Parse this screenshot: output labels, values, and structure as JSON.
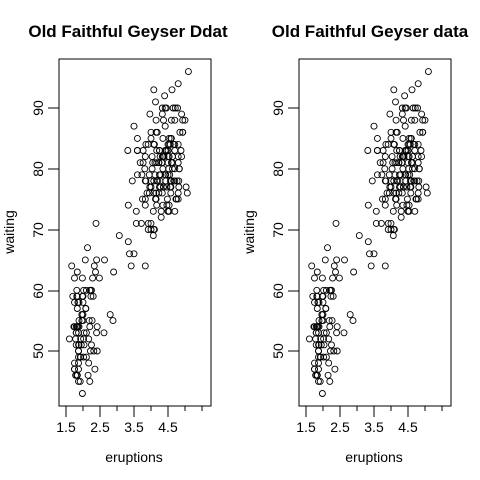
{
  "chart_data": [
    {
      "type": "scatter",
      "title": "Old Faithful Geyser Ddat",
      "xlabel": "eruptions",
      "ylabel": "waiting",
      "xlim": [
        1.5,
        5.1
      ],
      "ylim": [
        42,
        98
      ],
      "xticks": [
        "1.5",
        "2.5",
        "3.5",
        "4.5"
      ],
      "yticks": [
        "50",
        "60",
        "70",
        "80",
        "90"
      ],
      "grid": false,
      "legend": "none",
      "x": [
        3.6,
        1.8,
        3.333,
        2.283,
        4.533,
        2.883,
        4.7,
        3.6,
        1.95,
        4.35,
        1.833,
        3.917,
        4.2,
        1.75,
        4.7,
        2.167,
        1.75,
        4.8,
        1.6,
        4.25,
        1.8,
        1.75,
        3.45,
        3.067,
        4.533,
        3.6,
        1.967,
        4.083,
        3.85,
        4.433,
        4.3,
        4.467,
        3.367,
        4.033,
        3.833,
        2.017,
        1.867,
        4.833,
        1.833,
        4.783,
        4.35,
        1.883,
        4.567,
        1.75,
        4.533,
        3.317,
        3.833,
        2.1,
        4.633,
        2,
        4.8,
        4.716,
        1.833,
        4.833,
        1.733,
        4.883,
        3.717,
        1.667,
        4.567,
        4.317,
        2.233,
        4.5,
        1.75,
        4.8,
        1.817,
        4.4,
        4.167,
        4.7,
        2.067,
        4.7,
        4.033,
        1.967,
        4.5,
        4,
        1.983,
        5.067,
        2.017,
        4.567,
        3.883,
        3.6,
        4.133,
        4.333,
        4.1,
        2.633,
        4.067,
        4.933,
        3.95,
        4.517,
        2.167,
        4,
        2.2,
        4.333,
        1.867,
        4.817,
        1.833,
        4.3,
        4.667,
        3.75,
        1.867,
        4.9,
        2.483,
        4.367,
        2.1,
        4.5,
        4.05,
        1.867,
        4.7,
        1.783,
        4.85,
        3.683,
        4.733,
        2.3,
        4.9,
        4.417,
        1.7,
        4.633,
        2.317,
        4.6,
        1.817,
        4.417,
        2.617,
        4.067,
        4.25,
        1.967,
        4.6,
        3.767,
        1.917,
        4.5,
        2.267,
        4.65,
        1.867,
        4.167,
        2.8,
        4.333,
        1.833,
        4.383,
        1.883,
        4.933,
        2.033,
        3.733,
        4.233,
        2.233,
        4.533,
        4.817,
        4.333,
        1.983,
        4.633,
        2.017,
        5.1,
        1.8,
        5.033,
        4,
        2.4,
        4.6,
        3.567,
        4,
        4.5,
        4.083,
        1.8,
        3.967,
        2.2,
        4.15,
        2,
        3.833,
        3.5,
        4.583,
        2.367,
        5,
        1.933,
        4.617,
        1.917,
        2.083,
        4.583,
        3.333,
        4.167,
        4.333,
        4.5,
        2.417,
        4,
        4.167,
        1.883,
        4.583,
        4.25,
        3.767,
        2.033,
        4.433,
        4.083,
        1.833,
        4.417,
        2.183,
        4.8,
        1.833,
        4.8,
        4.1,
        3.966,
        4.233,
        3.5,
        4.366,
        2.25,
        4.667,
        2.1,
        4.35,
        4.133,
        1.867,
        4.6,
        1.783,
        4.367,
        3.85,
        1.933,
        4.5,
        2.383,
        4.7,
        1.867,
        3.833,
        3.417,
        4.233,
        2.4,
        4.8,
        2,
        4.15,
        1.867,
        4.267,
        1.75,
        4.483,
        4,
        4.117,
        4.083,
        4.267,
        3.917,
        4.55,
        4.083,
        2.417,
        4.183,
        2.217,
        4.45,
        1.883,
        1.85,
        4.283,
        3.95,
        2.333,
        4.15,
        2.35,
        4.933,
        2.9,
        4.583,
        3.833,
        2.083,
        4.367,
        2.133,
        4.35,
        2.2,
        4.45,
        3.567,
        4.5,
        4.15,
        3.817,
        3.917,
        4.45,
        2,
        4.283,
        4.767,
        4.533,
        1.85,
        4.25,
        1.983,
        2.25,
        4.75,
        4.117,
        2.15,
        4.417,
        1.817,
        4.467
      ],
      "y": [
        79,
        54,
        74,
        62,
        85,
        55,
        88,
        85,
        51,
        85,
        54,
        84,
        78,
        47,
        83,
        52,
        62,
        84,
        52,
        79,
        51,
        47,
        78,
        69,
        74,
        83,
        55,
        76,
        78,
        79,
        73,
        77,
        66,
        80,
        74,
        52,
        48,
        80,
        59,
        90,
        80,
        58,
        84,
        58,
        73,
        83,
        64,
        53,
        82,
        59,
        75,
        90,
        54,
        80,
        54,
        83,
        71,
        64,
        77,
        81,
        59,
        84,
        48,
        82,
        60,
        92,
        78,
        78,
        65,
        73,
        82,
        56,
        79,
        71,
        62,
        76,
        60,
        78,
        76,
        83,
        75,
        82,
        70,
        65,
        73,
        88,
        76,
        80,
        48,
        86,
        60,
        90,
        50,
        78,
        63,
        72,
        84,
        75,
        51,
        82,
        62,
        88,
        49,
        83,
        81,
        47,
        84,
        52,
        86,
        81,
        75,
        59,
        89,
        79,
        59,
        81,
        50,
        85,
        59,
        87,
        53,
        69,
        77,
        56,
        88,
        81,
        45,
        82,
        55,
        90,
        45,
        83,
        56,
        89,
        46,
        82,
        51,
        86,
        53,
        79,
        81,
        60,
        82,
        77,
        76,
        59,
        80,
        49,
        96,
        53,
        77,
        77,
        65,
        81,
        71,
        70,
        81,
        93,
        53,
        89,
        45,
        86,
        58,
        78,
        66,
        76,
        63,
        88,
        52,
        93,
        49,
        57,
        77,
        68,
        81,
        81,
        73,
        50,
        85,
        74,
        55,
        77,
        83,
        83,
        51,
        78,
        84,
        46,
        83,
        55,
        81,
        57,
        76,
        84,
        77,
        81,
        87,
        77,
        51,
        78,
        60,
        82,
        91,
        53,
        78,
        46,
        77,
        84,
        49,
        83,
        71,
        80,
        49,
        75,
        64,
        76,
        53,
        94,
        55,
        76,
        50,
        82,
        54,
        75,
        78,
        79,
        78,
        78,
        70,
        79,
        70,
        54,
        86,
        50,
        90,
        54,
        54,
        77,
        79,
        64,
        75,
        47,
        86,
        63,
        85,
        82,
        57,
        82,
        67,
        74,
        54,
        83,
        73,
        73,
        88,
        80,
        71,
        83,
        56,
        79,
        78,
        84,
        58,
        83,
        43,
        60,
        75,
        81,
        46,
        90,
        46,
        74
      ]
    },
    {
      "type": "scatter",
      "title": "Old Faithful Geyser data",
      "xlabel": "eruptions",
      "ylabel": "waiting",
      "xlim": [
        1.5,
        5.1
      ],
      "ylim": [
        42,
        98
      ],
      "xticks": [
        "1.5",
        "2.5",
        "3.5",
        "4.5"
      ],
      "yticks": [
        "50",
        "60",
        "70",
        "80",
        "90"
      ],
      "grid": false,
      "legend": "none",
      "x": [
        3.6,
        1.8,
        3.333,
        2.283,
        4.533,
        2.883,
        4.7,
        3.6,
        1.95,
        4.35,
        1.833,
        3.917,
        4.2,
        1.75,
        4.7,
        2.167,
        1.75,
        4.8,
        1.6,
        4.25,
        1.8,
        1.75,
        3.45,
        3.067,
        4.533,
        3.6,
        1.967,
        4.083,
        3.85,
        4.433,
        4.3,
        4.467,
        3.367,
        4.033,
        3.833,
        2.017,
        1.867,
        4.833,
        1.833,
        4.783,
        4.35,
        1.883,
        4.567,
        1.75,
        4.533,
        3.317,
        3.833,
        2.1,
        4.633,
        2,
        4.8,
        4.716,
        1.833,
        4.833,
        1.733,
        4.883,
        3.717,
        1.667,
        4.567,
        4.317,
        2.233,
        4.5,
        1.75,
        4.8,
        1.817,
        4.4,
        4.167,
        4.7,
        2.067,
        4.7,
        4.033,
        1.967,
        4.5,
        4,
        1.983,
        5.067,
        2.017,
        4.567,
        3.883,
        3.6,
        4.133,
        4.333,
        4.1,
        2.633,
        4.067,
        4.933,
        3.95,
        4.517,
        2.167,
        4,
        2.2,
        4.333,
        1.867,
        4.817,
        1.833,
        4.3,
        4.667,
        3.75,
        1.867,
        4.9,
        2.483,
        4.367,
        2.1,
        4.5,
        4.05,
        1.867,
        4.7,
        1.783,
        4.85,
        3.683,
        4.733,
        2.3,
        4.9,
        4.417,
        1.7,
        4.633,
        2.317,
        4.6,
        1.817,
        4.417,
        2.617,
        4.067,
        4.25,
        1.967,
        4.6,
        3.767,
        1.917,
        4.5,
        2.267,
        4.65,
        1.867,
        4.167,
        2.8,
        4.333,
        1.833,
        4.383,
        1.883,
        4.933,
        2.033,
        3.733,
        4.233,
        2.233,
        4.533,
        4.817,
        4.333,
        1.983,
        4.633,
        2.017,
        5.1,
        1.8,
        5.033,
        4,
        2.4,
        4.6,
        3.567,
        4,
        4.5,
        4.083,
        1.8,
        3.967,
        2.2,
        4.15,
        2,
        3.833,
        3.5,
        4.583,
        2.367,
        5,
        1.933,
        4.617,
        1.917,
        2.083,
        4.583,
        3.333,
        4.167,
        4.333,
        4.5,
        2.417,
        4,
        4.167,
        1.883,
        4.583,
        4.25,
        3.767,
        2.033,
        4.433,
        4.083,
        1.833,
        4.417,
        2.183,
        4.8,
        1.833,
        4.8,
        4.1,
        3.966,
        4.233,
        3.5,
        4.366,
        2.25,
        4.667,
        2.1,
        4.35,
        4.133,
        1.867,
        4.6,
        1.783,
        4.367,
        3.85,
        1.933,
        4.5,
        2.383,
        4.7,
        1.867,
        3.833,
        3.417,
        4.233,
        2.4,
        4.8,
        2,
        4.15,
        1.867,
        4.267,
        1.75,
        4.483,
        4,
        4.117,
        4.083,
        4.267,
        3.917,
        4.55,
        4.083,
        2.417,
        4.183,
        2.217,
        4.45,
        1.883,
        1.85,
        4.283,
        3.95,
        2.333,
        4.15,
        2.35,
        4.933,
        2.9,
        4.583,
        3.833,
        2.083,
        4.367,
        2.133,
        4.35,
        2.2,
        4.45,
        3.567,
        4.5,
        4.15,
        3.817,
        3.917,
        4.45,
        2,
        4.283,
        4.767,
        4.533,
        1.85,
        4.25,
        1.983,
        2.25,
        4.75,
        4.117,
        2.15,
        4.417,
        1.817,
        4.467
      ],
      "y": [
        79,
        54,
        74,
        62,
        85,
        55,
        88,
        85,
        51,
        85,
        54,
        84,
        78,
        47,
        83,
        52,
        62,
        84,
        52,
        79,
        51,
        47,
        78,
        69,
        74,
        83,
        55,
        76,
        78,
        79,
        73,
        77,
        66,
        80,
        74,
        52,
        48,
        80,
        59,
        90,
        80,
        58,
        84,
        58,
        73,
        83,
        64,
        53,
        82,
        59,
        75,
        90,
        54,
        80,
        54,
        83,
        71,
        64,
        77,
        81,
        59,
        84,
        48,
        82,
        60,
        92,
        78,
        78,
        65,
        73,
        82,
        56,
        79,
        71,
        62,
        76,
        60,
        78,
        76,
        83,
        75,
        82,
        70,
        65,
        73,
        88,
        76,
        80,
        48,
        86,
        60,
        90,
        50,
        78,
        63,
        72,
        84,
        75,
        51,
        82,
        62,
        88,
        49,
        83,
        81,
        47,
        84,
        52,
        86,
        81,
        75,
        59,
        89,
        79,
        59,
        81,
        50,
        85,
        59,
        87,
        53,
        69,
        77,
        56,
        88,
        81,
        45,
        82,
        55,
        90,
        45,
        83,
        56,
        89,
        46,
        82,
        51,
        86,
        53,
        79,
        81,
        60,
        82,
        77,
        76,
        59,
        80,
        49,
        96,
        53,
        77,
        77,
        65,
        81,
        71,
        70,
        81,
        93,
        53,
        89,
        45,
        86,
        58,
        78,
        66,
        76,
        63,
        88,
        52,
        93,
        49,
        57,
        77,
        68,
        81,
        81,
        73,
        50,
        85,
        74,
        55,
        77,
        83,
        83,
        51,
        78,
        84,
        46,
        83,
        55,
        81,
        57,
        76,
        84,
        77,
        81,
        87,
        77,
        51,
        78,
        60,
        82,
        91,
        53,
        78,
        46,
        77,
        84,
        49,
        83,
        71,
        80,
        49,
        75,
        64,
        76,
        53,
        94,
        55,
        76,
        50,
        82,
        54,
        75,
        78,
        79,
        78,
        78,
        70,
        79,
        70,
        54,
        86,
        50,
        90,
        54,
        54,
        77,
        79,
        64,
        75,
        47,
        86,
        63,
        85,
        82,
        57,
        82,
        67,
        74,
        54,
        83,
        73,
        73,
        88,
        80,
        71,
        83,
        56,
        79,
        78,
        84,
        58,
        83,
        43,
        60,
        75,
        81,
        46,
        90,
        46,
        74
      ]
    }
  ]
}
